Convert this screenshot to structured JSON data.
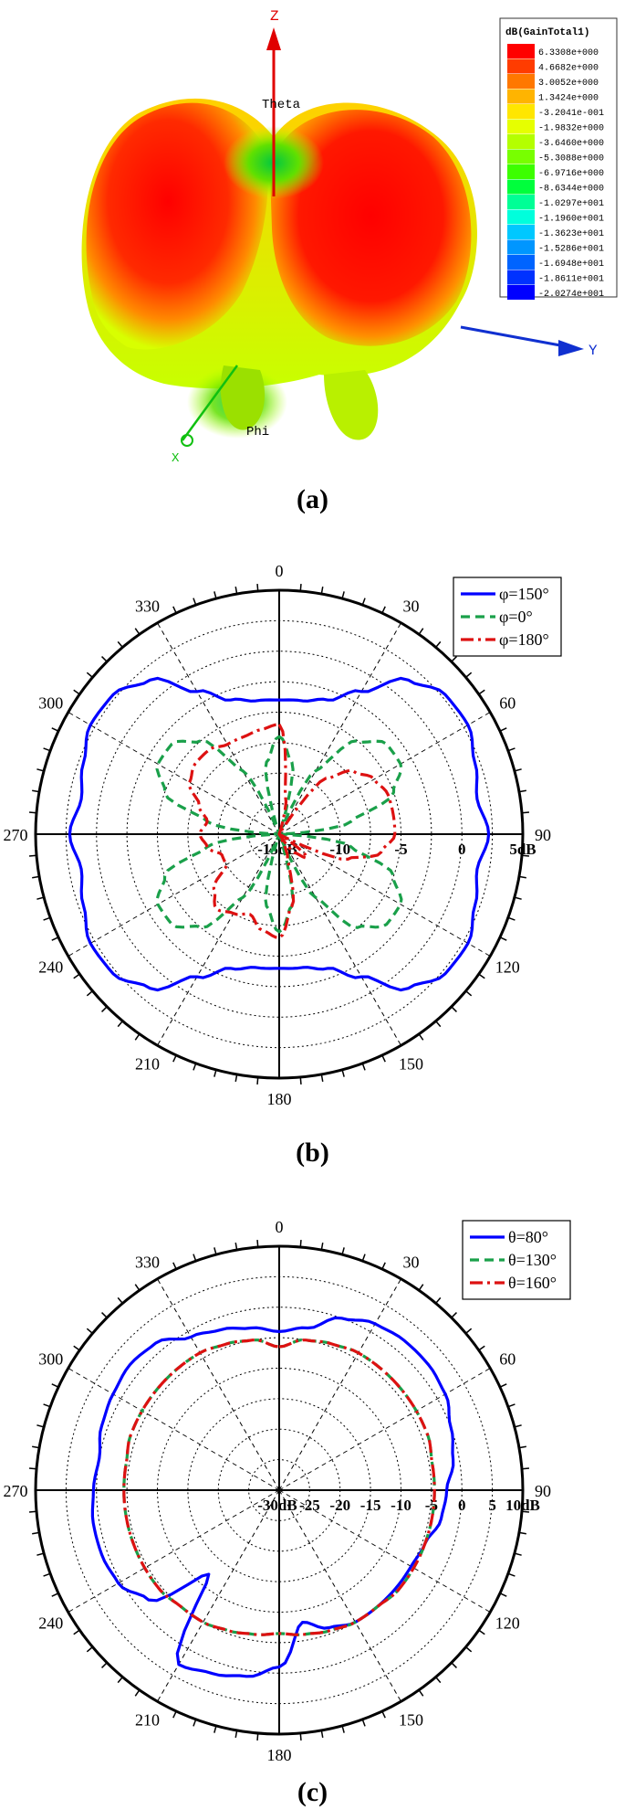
{
  "panel_a": {
    "caption": "(a)",
    "legend_title": "dB(GainTotal1)",
    "legend_values": [
      "6.3308e+000",
      "4.6682e+000",
      "3.0052e+000",
      "1.3424e+000",
      "-3.2041e-001",
      "-1.9832e+000",
      "-3.6460e+000",
      "-5.3088e+000",
      "-6.9716e+000",
      "-8.6344e+000",
      "-1.0297e+001",
      "-1.1960e+001",
      "-1.3623e+001",
      "-1.5286e+001",
      "-1.6948e+001",
      "-1.8611e+001",
      "-2.0274e+001"
    ],
    "legend_colors": [
      "#ff0000",
      "#ff3c00",
      "#ff7800",
      "#ffb400",
      "#ffe600",
      "#e6ff00",
      "#b4ff00",
      "#78ff00",
      "#3cff00",
      "#00ff3c",
      "#00ff96",
      "#00ffdc",
      "#00c8ff",
      "#0096ff",
      "#0064ff",
      "#0032ff",
      "#0000ff"
    ],
    "axis_z": "Z",
    "axis_y": "Y",
    "axis_x": "X",
    "label_theta": "Theta",
    "label_phi": "Phi"
  },
  "chart_data": [
    {
      "type": "polar-line",
      "caption": "(b)",
      "radial_unit": "dB",
      "radial_ticks": [
        "-15dB",
        "-10",
        "-5",
        "0",
        "5dB"
      ],
      "radial_range": [
        -15,
        5
      ],
      "angle_ticks": [
        "0",
        "30",
        "60",
        "90",
        "120",
        "150",
        "180",
        "210",
        "240",
        "270",
        "300",
        "330"
      ],
      "grid": true,
      "legend_position": "top-right",
      "series": [
        {
          "name": "φ=150°",
          "color": "#0000ff",
          "style": "solid",
          "angles": [
            0,
            10,
            20,
            30,
            40,
            50,
            60,
            70,
            80,
            90,
            100,
            110,
            120,
            130,
            140,
            150,
            160,
            170,
            180,
            190,
            200,
            210,
            220,
            230,
            240,
            250,
            260,
            270,
            280,
            290,
            300,
            310,
            320,
            330,
            340,
            350
          ],
          "values": [
            -4,
            -3.9,
            -3.3,
            -1.5,
            1.5,
            2.8,
            2.9,
            2.1,
            1.5,
            2.2,
            1.5,
            2.1,
            2.9,
            2.8,
            1.5,
            -1.5,
            -3.3,
            -3.9,
            -4,
            -3.9,
            -3.3,
            -1.5,
            1.5,
            2.8,
            2.9,
            2.1,
            1.5,
            2.2,
            1.5,
            2.1,
            2.9,
            2.8,
            1.5,
            -1.5,
            -3.3,
            -3.9
          ]
        },
        {
          "name": "φ=0°",
          "color": "#1aa04a",
          "style": "dashed",
          "angles": [
            0,
            10,
            20,
            30,
            40,
            50,
            60,
            70,
            80,
            90,
            100,
            110,
            120,
            130,
            140,
            150,
            160,
            170,
            180,
            190,
            200,
            210,
            220,
            230,
            240,
            250,
            260,
            270,
            280,
            290,
            300,
            310,
            320,
            330,
            340,
            350
          ],
          "values": [
            -7,
            -9,
            -15,
            -9,
            -5,
            -3.5,
            -3.5,
            -5,
            -9,
            -15,
            -9,
            -5,
            -3.5,
            -3.5,
            -5,
            -9,
            -15,
            -9,
            -7,
            -9,
            -15,
            -9,
            -5,
            -3.5,
            -3.5,
            -5,
            -9,
            -15,
            -9,
            -5,
            -3.5,
            -3.5,
            -5,
            -9,
            -15,
            -9
          ]
        },
        {
          "name": "φ=180°",
          "color": "#dd1111",
          "style": "dashdot",
          "angles": [
            0,
            10,
            20,
            30,
            40,
            50,
            60,
            70,
            80,
            90,
            100,
            110,
            120,
            130,
            140,
            150,
            160,
            170,
            180,
            190,
            200,
            210,
            220,
            230,
            240,
            250,
            260,
            270,
            280,
            290,
            300,
            310,
            320,
            330,
            340,
            350
          ],
          "values": [
            -6,
            -12,
            -15,
            -15,
            -9,
            -7,
            -6,
            -5.5,
            -5.5,
            -5.5,
            -6.5,
            -9,
            -15,
            -12,
            -13,
            -15,
            -13,
            -9,
            -6.5,
            -7,
            -8,
            -7.5,
            -7,
            -8,
            -10,
            -10,
            -9,
            -8.5,
            -9,
            -8,
            -6.5,
            -6,
            -6,
            -6.5,
            -6.5,
            -6.3
          ]
        }
      ]
    },
    {
      "type": "polar-line",
      "caption": "(c)",
      "radial_unit": "dB",
      "radial_ticks": [
        "-30dB",
        "-25",
        "-20",
        "-15",
        "-10",
        "-5",
        "0",
        "5",
        "10dB"
      ],
      "radial_range": [
        -30,
        10
      ],
      "angle_ticks": [
        "0",
        "30",
        "60",
        "90",
        "120",
        "150",
        "180",
        "210",
        "240",
        "270",
        "300",
        "330"
      ],
      "grid": true,
      "legend_position": "top-right",
      "series": [
        {
          "name": "θ=80°",
          "color": "#0000ff",
          "style": "solid",
          "angles": [
            0,
            10,
            20,
            30,
            40,
            50,
            60,
            70,
            80,
            90,
            100,
            110,
            120,
            130,
            140,
            150,
            160,
            170,
            180,
            190,
            200,
            210,
            220,
            230,
            240,
            250,
            260,
            270,
            280,
            290,
            300,
            310,
            320,
            330,
            340,
            350
          ],
          "values": [
            -4,
            -3,
            0,
            1.5,
            2,
            2,
            1.5,
            0,
            -1,
            -2.5,
            -3,
            -4.5,
            -5,
            -5,
            -5,
            -5,
            -6,
            -8,
            -1,
            1,
            2,
            3,
            -12,
            -2,
            0.5,
            1,
            1,
            0.5,
            0,
            1,
            1.5,
            2,
            1.5,
            -1,
            -2,
            -3
          ]
        },
        {
          "name": "θ=130°",
          "color": "#1aa04a",
          "style": "dashed",
          "angles": [
            0,
            10,
            20,
            30,
            40,
            50,
            60,
            70,
            80,
            90,
            100,
            110,
            120,
            130,
            140,
            150,
            160,
            170,
            180,
            190,
            200,
            210,
            220,
            230,
            240,
            250,
            260,
            270,
            280,
            290,
            300,
            310,
            320,
            330,
            340,
            350
          ],
          "values": [
            -6.5,
            -5,
            -4.5,
            -4,
            -4,
            -4,
            -4,
            -4,
            -4.5,
            -4.5,
            -4.5,
            -4.5,
            -4.5,
            -4.5,
            -5,
            -5,
            -5.5,
            -6,
            -6.5,
            -6,
            -5.5,
            -5,
            -5,
            -4.5,
            -4.5,
            -4.5,
            -4.5,
            -4.5,
            -4.5,
            -4,
            -4,
            -4,
            -4,
            -4,
            -4.5,
            -5
          ]
        },
        {
          "name": "θ=160°",
          "color": "#dd1111",
          "style": "dashdot",
          "angles": [
            0,
            10,
            20,
            30,
            40,
            50,
            60,
            70,
            80,
            90,
            100,
            110,
            120,
            130,
            140,
            150,
            160,
            170,
            180,
            190,
            200,
            210,
            220,
            230,
            240,
            250,
            260,
            270,
            280,
            290,
            300,
            310,
            320,
            330,
            340,
            350
          ],
          "values": [
            -6.5,
            -5,
            -4.5,
            -4,
            -4,
            -4,
            -4,
            -4,
            -4.5,
            -4.5,
            -4.5,
            -4.5,
            -4.5,
            -4.5,
            -5,
            -5,
            -5.5,
            -6,
            -6.5,
            -6,
            -5.5,
            -5,
            -5,
            -4.5,
            -4.5,
            -4.5,
            -4.5,
            -4.5,
            -4.5,
            -4,
            -4,
            -4,
            -4,
            -4,
            -4.5,
            -5
          ]
        }
      ]
    }
  ]
}
